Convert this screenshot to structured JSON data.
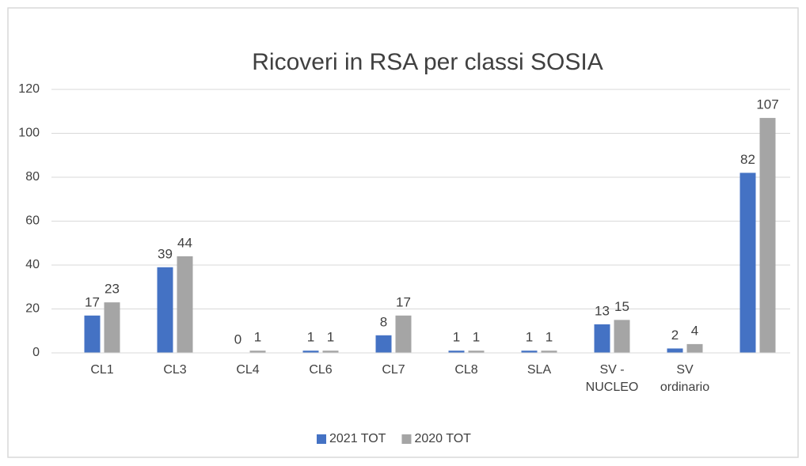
{
  "chart_data": {
    "type": "bar",
    "title": "Ricoveri in RSA per classi SOSIA",
    "categories": [
      "CL1",
      "CL3",
      "CL4",
      "CL6",
      "CL7",
      "CL8",
      "SLA",
      "SV - NUCLEO",
      "SV ordinario",
      null
    ],
    "series": [
      {
        "name": "2021 TOT",
        "color": "#4472c4",
        "values": [
          17,
          39,
          0,
          1,
          8,
          1,
          1,
          13,
          2,
          82
        ]
      },
      {
        "name": "2020 TOT",
        "color": "#a5a5a5",
        "values": [
          23,
          44,
          1,
          1,
          17,
          1,
          1,
          15,
          4,
          107
        ]
      }
    ],
    "ylim": [
      0,
      120
    ],
    "yticks": [
      0,
      20,
      40,
      60,
      80,
      100,
      120
    ],
    "grid": true,
    "legend": "bottom"
  }
}
